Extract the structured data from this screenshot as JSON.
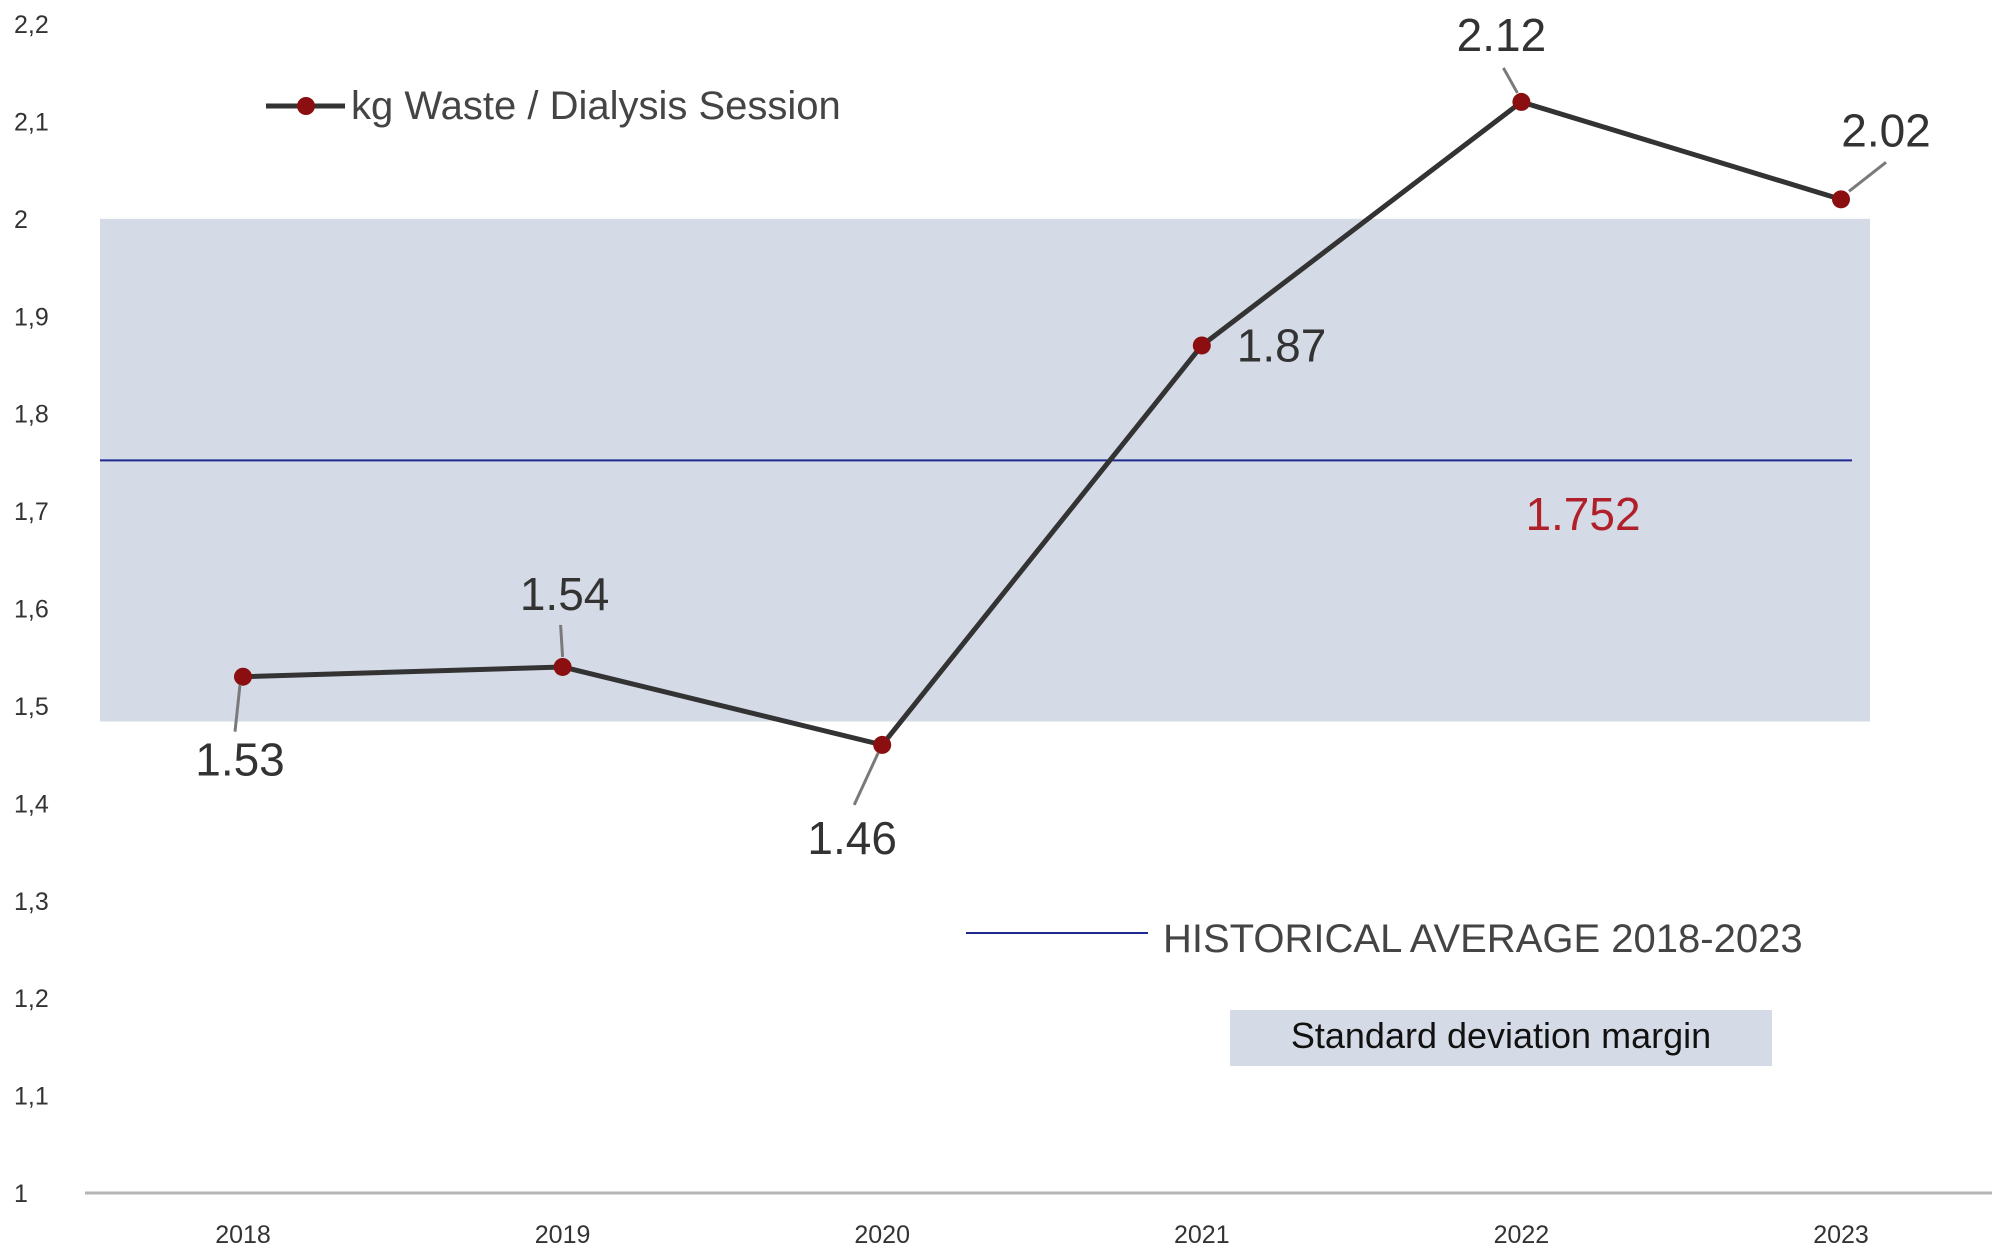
{
  "chart_data": {
    "type": "line",
    "categories": [
      "2018",
      "2019",
      "2020",
      "2021",
      "2022",
      "2023"
    ],
    "series": [
      {
        "name": "kg Waste / Dialysis Session",
        "values": [
          1.53,
          1.54,
          1.46,
          1.87,
          2.12,
          2.02
        ],
        "labels": [
          "1.53",
          "1.54",
          "1.46",
          "1.87",
          "2.12",
          "2.02"
        ],
        "color": "#333333",
        "marker_color": "#8b0e10"
      }
    ],
    "ylim": [
      1,
      2.2
    ],
    "yticks": [
      1,
      1.1,
      1.2,
      1.3,
      1.4,
      1.5,
      1.6,
      1.7,
      1.8,
      1.9,
      2,
      2.1,
      2.2
    ],
    "ytick_labels": [
      "1",
      "1,1",
      "1,2",
      "1,3",
      "1,4",
      "1,5",
      "1,6",
      "1,7",
      "1,8",
      "1,9",
      "2",
      "2,1",
      "2,2"
    ],
    "reference_line": {
      "value": 1.752,
      "label": "1.752",
      "legend": "HISTORICAL AVERAGE 2018-2023",
      "color": "#1f2a8f"
    },
    "band": {
      "low": 1.484,
      "high": 2.0,
      "legend": "Standard deviation margin",
      "color": "#d5dbe6"
    },
    "grid": false,
    "legend_position": "top-left"
  }
}
